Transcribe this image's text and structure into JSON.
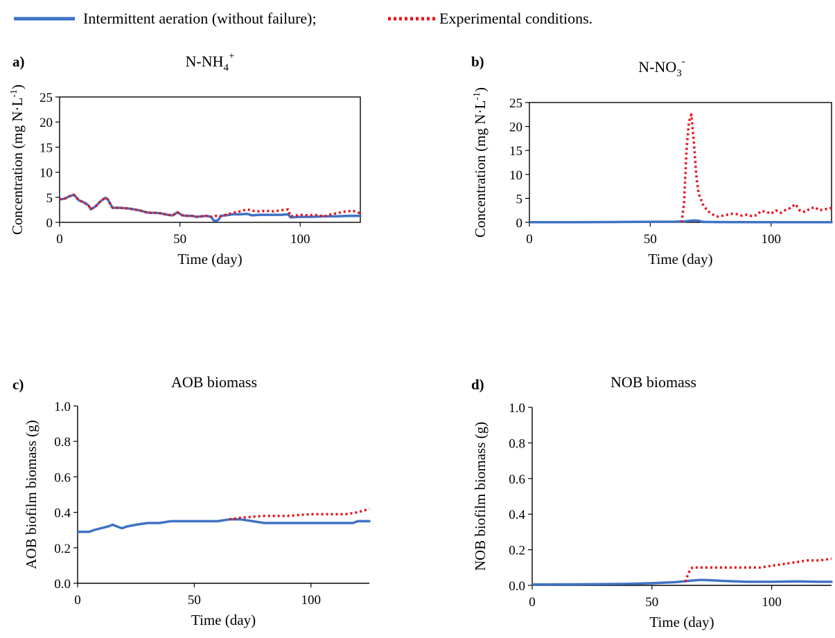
{
  "legend": {
    "items": [
      {
        "label": "Intermittent aeration (without failure);",
        "style": "solid",
        "color": "#3e72c4"
      },
      {
        "label": "Experimental conditions.",
        "style": "dotted",
        "color": "#e8121b"
      }
    ]
  },
  "colors": {
    "baseline": "#3e72c4",
    "experimental": "#e8121b",
    "axis": "#000000"
  },
  "chart_data": [
    {
      "id": "a",
      "panel_label": "a)",
      "title": "N-NH",
      "title_sub": "4",
      "title_sup": "+",
      "type": "line",
      "xlabel": "Time (day)",
      "ylabel": "Concentration (mg N·L",
      "ylabel_sup": "-1",
      "ylabel_end": ")",
      "xlim": [
        0,
        125
      ],
      "ylim": [
        0,
        25
      ],
      "xticks": [
        0,
        50,
        100
      ],
      "yticks": [
        0,
        5,
        10,
        15,
        20,
        25
      ],
      "ytick_format": "int",
      "box": true,
      "series": [
        {
          "key": "baseline",
          "x": [
            0,
            2,
            4,
            6,
            8,
            10,
            12,
            13,
            15,
            17,
            19,
            20,
            22,
            25,
            28,
            31,
            34,
            36,
            38,
            40,
            42,
            45,
            47,
            49,
            51,
            53,
            55,
            57,
            59,
            61,
            63,
            64,
            65,
            66,
            67,
            69,
            72,
            75,
            78,
            80,
            83,
            86,
            89,
            92,
            95,
            96,
            100,
            105,
            110,
            115,
            120,
            125
          ],
          "y": [
            4.6,
            4.7,
            5.2,
            5.5,
            4.4,
            4.0,
            3.4,
            2.6,
            3.2,
            4.2,
            4.9,
            4.6,
            2.9,
            2.9,
            2.8,
            2.6,
            2.3,
            2.0,
            1.9,
            1.9,
            1.8,
            1.5,
            1.4,
            2.0,
            1.4,
            1.3,
            1.3,
            1.1,
            1.2,
            1.3,
            1.1,
            0.4,
            0.3,
            0.5,
            1.3,
            1.4,
            1.6,
            1.6,
            1.7,
            1.4,
            1.5,
            1.5,
            1.5,
            1.5,
            1.6,
            1.0,
            1.1,
            1.1,
            1.2,
            1.2,
            1.3,
            1.3
          ]
        },
        {
          "key": "experimental",
          "x": [
            0,
            2,
            4,
            6,
            8,
            10,
            12,
            13,
            15,
            17,
            19,
            20,
            22,
            25,
            28,
            31,
            34,
            36,
            38,
            40,
            42,
            45,
            47,
            49,
            51,
            53,
            55,
            57,
            59,
            61,
            63,
            65,
            67,
            69,
            72,
            75,
            78,
            80,
            83,
            86,
            89,
            92,
            95,
            96,
            100,
            103,
            106,
            110,
            113,
            116,
            119,
            122,
            125
          ],
          "y": [
            4.6,
            4.7,
            5.2,
            5.5,
            4.4,
            4.0,
            3.4,
            2.6,
            3.2,
            4.2,
            4.9,
            4.6,
            2.9,
            2.9,
            2.8,
            2.6,
            2.3,
            2.0,
            1.9,
            1.9,
            1.8,
            1.5,
            1.4,
            2.0,
            1.4,
            1.3,
            1.3,
            1.1,
            1.2,
            1.3,
            1.1,
            1.3,
            1.2,
            1.5,
            1.9,
            2.2,
            2.6,
            2.3,
            2.2,
            2.3,
            2.2,
            2.4,
            2.6,
            1.2,
            1.5,
            1.4,
            1.5,
            1.2,
            1.6,
            1.9,
            2.2,
            2.3,
            1.8
          ]
        }
      ]
    },
    {
      "id": "b",
      "panel_label": "b)",
      "title": "N-NO",
      "title_sub": "3",
      "title_sup": "-",
      "type": "line",
      "xlabel": "Time (day)",
      "ylabel": "Concentration (mg N·L",
      "ylabel_sup": "-1",
      "ylabel_end": ")",
      "xlim": [
        0,
        125
      ],
      "ylim": [
        0,
        25
      ],
      "xticks": [
        0,
        50,
        100
      ],
      "yticks": [
        0,
        5,
        10,
        15,
        20,
        25
      ],
      "ytick_format": "int",
      "box": true,
      "series": [
        {
          "key": "baseline",
          "x": [
            0,
            20,
            40,
            60,
            64,
            66,
            68,
            70,
            72,
            80,
            100,
            125
          ],
          "y": [
            0.05,
            0.05,
            0.08,
            0.15,
            0.2,
            0.3,
            0.4,
            0.35,
            0.08,
            0.06,
            0.05,
            0.05
          ]
        },
        {
          "key": "experimental",
          "x": [
            63,
            64,
            65,
            66,
            67,
            68,
            69,
            70,
            72,
            74,
            76,
            78,
            80,
            82,
            84,
            86,
            88,
            90,
            92,
            94,
            96,
            98,
            100,
            102,
            104,
            106,
            108,
            110,
            112,
            114,
            116,
            118,
            120,
            122,
            125
          ],
          "y": [
            0,
            4,
            15,
            21,
            22.5,
            17,
            10,
            6,
            3.5,
            2.3,
            1.6,
            1.2,
            1.4,
            1.6,
            1.8,
            1.7,
            1.4,
            1.6,
            1.3,
            1.5,
            2.4,
            2.2,
            1.8,
            2.5,
            2.0,
            2.6,
            3.0,
            3.8,
            2.4,
            2.2,
            2.8,
            3.2,
            2.5,
            2.7,
            3.0
          ]
        }
      ]
    },
    {
      "id": "c",
      "panel_label": "c)",
      "title": "AOB biomass",
      "type": "line",
      "xlabel": "Time (day)",
      "ylabel": "AOB biofilm biomass (g)",
      "xlim": [
        0,
        125
      ],
      "ylim": [
        0,
        1.0
      ],
      "xticks": [
        0,
        50,
        100
      ],
      "yticks": [
        0,
        0.2,
        0.4,
        0.6,
        0.8,
        1.0
      ],
      "ytick_format": "1dp",
      "box": false,
      "series": [
        {
          "key": "baseline",
          "x": [
            0,
            3,
            5,
            7,
            10,
            13,
            15,
            17,
            19,
            21,
            25,
            30,
            35,
            40,
            45,
            50,
            55,
            60,
            65,
            70,
            75,
            80,
            85,
            90,
            95,
            100,
            105,
            110,
            115,
            118,
            120,
            125
          ],
          "y": [
            0.29,
            0.29,
            0.29,
            0.3,
            0.31,
            0.32,
            0.33,
            0.32,
            0.31,
            0.32,
            0.33,
            0.34,
            0.34,
            0.35,
            0.35,
            0.35,
            0.35,
            0.35,
            0.36,
            0.36,
            0.35,
            0.34,
            0.34,
            0.34,
            0.34,
            0.34,
            0.34,
            0.34,
            0.34,
            0.34,
            0.35,
            0.35
          ]
        },
        {
          "key": "experimental",
          "x": [
            65,
            70,
            80,
            90,
            100,
            110,
            115,
            120,
            125
          ],
          "y": [
            0.36,
            0.37,
            0.38,
            0.38,
            0.39,
            0.39,
            0.39,
            0.4,
            0.42
          ]
        }
      ]
    },
    {
      "id": "d",
      "panel_label": "d)",
      "title": "NOB biomass",
      "type": "line",
      "xlabel": "Time (day)",
      "ylabel": "NOB biofilm biomass (g)",
      "xlim": [
        0,
        125
      ],
      "ylim": [
        0,
        1.0
      ],
      "xticks": [
        0,
        50,
        100
      ],
      "yticks": [
        0,
        0.2,
        0.4,
        0.6,
        0.8,
        1.0
      ],
      "ytick_format": "1dp",
      "box": false,
      "series": [
        {
          "key": "baseline",
          "x": [
            0,
            20,
            40,
            50,
            60,
            65,
            70,
            72,
            80,
            90,
            100,
            110,
            120,
            125
          ],
          "y": [
            0.005,
            0.006,
            0.008,
            0.012,
            0.018,
            0.025,
            0.03,
            0.03,
            0.025,
            0.02,
            0.02,
            0.022,
            0.02,
            0.02
          ]
        },
        {
          "key": "experimental",
          "x": [
            64,
            65,
            66,
            67,
            70,
            75,
            80,
            90,
            95,
            100,
            105,
            110,
            115,
            120,
            125
          ],
          "y": [
            0.02,
            0.06,
            0.09,
            0.1,
            0.1,
            0.1,
            0.1,
            0.1,
            0.1,
            0.11,
            0.12,
            0.13,
            0.14,
            0.14,
            0.15
          ]
        }
      ]
    }
  ]
}
